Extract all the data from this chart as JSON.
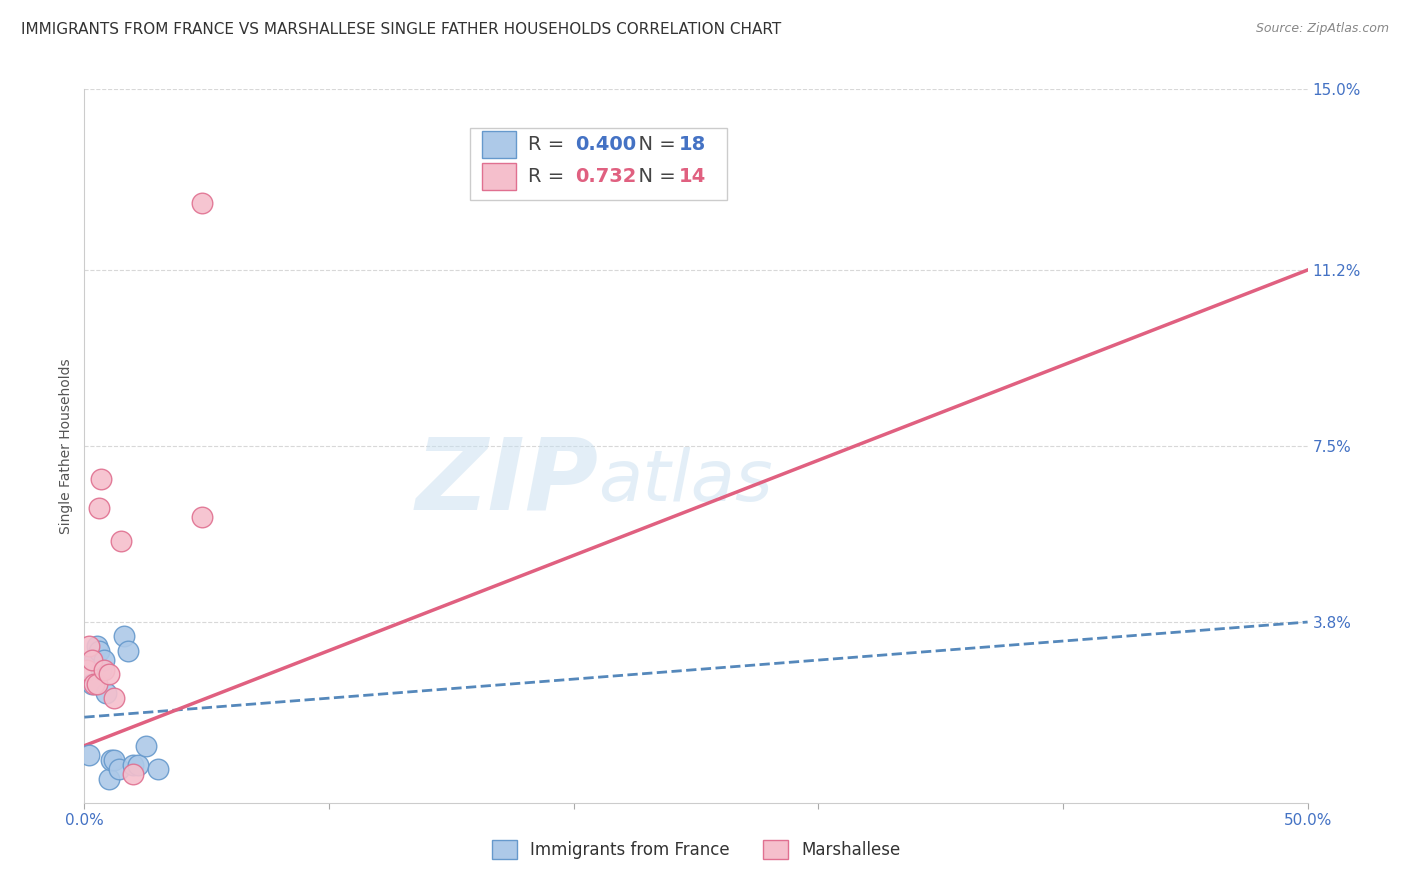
{
  "title": "IMMIGRANTS FROM FRANCE VS MARSHALLESE SINGLE FATHER HOUSEHOLDS CORRELATION CHART",
  "source": "Source: ZipAtlas.com",
  "ylabel": "Single Father Households",
  "xlim": [
    0.0,
    0.5
  ],
  "ylim": [
    0.0,
    0.15
  ],
  "yticks": [
    0.038,
    0.075,
    0.112,
    0.15
  ],
  "ytick_labels": [
    "3.8%",
    "7.5%",
    "11.2%",
    "15.0%"
  ],
  "xticks": [
    0.0,
    0.1,
    0.2,
    0.3,
    0.4,
    0.5
  ],
  "xtick_labels": [
    "0.0%",
    "",
    "",
    "",
    "",
    "50.0%"
  ],
  "series1_label": "Immigrants from France",
  "series1_R": "0.400",
  "series1_N": "18",
  "series1_color": "#adc9e8",
  "series1_edge_color": "#6699cc",
  "series1_line_color": "#5588bb",
  "series2_label": "Marshallese",
  "series2_R": "0.732",
  "series2_N": "14",
  "series2_color": "#f5bfcc",
  "series2_edge_color": "#e07090",
  "series2_line_color": "#e06080",
  "series1_x": [
    0.002,
    0.003,
    0.004,
    0.005,
    0.006,
    0.007,
    0.008,
    0.009,
    0.01,
    0.011,
    0.012,
    0.014,
    0.016,
    0.018,
    0.02,
    0.022,
    0.025,
    0.03
  ],
  "series1_y": [
    0.01,
    0.025,
    0.03,
    0.033,
    0.032,
    0.028,
    0.03,
    0.023,
    0.005,
    0.009,
    0.009,
    0.007,
    0.035,
    0.032,
    0.008,
    0.008,
    0.012,
    0.007
  ],
  "series2_x": [
    0.001,
    0.002,
    0.003,
    0.004,
    0.005,
    0.006,
    0.007,
    0.008,
    0.01,
    0.012,
    0.015,
    0.02,
    0.048,
    0.048
  ],
  "series2_y": [
    0.028,
    0.033,
    0.03,
    0.025,
    0.025,
    0.062,
    0.068,
    0.028,
    0.027,
    0.022,
    0.055,
    0.006,
    0.126,
    0.06
  ],
  "trend1_x0": 0.0,
  "trend1_x1": 0.5,
  "trend1_y0": 0.018,
  "trend1_y1": 0.038,
  "trend2_x0": 0.0,
  "trend2_x1": 0.5,
  "trend2_y0": 0.012,
  "trend2_y1": 0.112,
  "watermark": "ZIPatlas",
  "background_color": "#ffffff",
  "grid_color": "#d8d8d8",
  "title_fontsize": 11,
  "axis_label_fontsize": 10,
  "tick_fontsize": 11,
  "legend_fontsize": 14,
  "text_color_dark": "#333333",
  "R_label_color_blue": "#4472c4",
  "R_label_color_pink": "#e06080",
  "source_color": "#888888"
}
